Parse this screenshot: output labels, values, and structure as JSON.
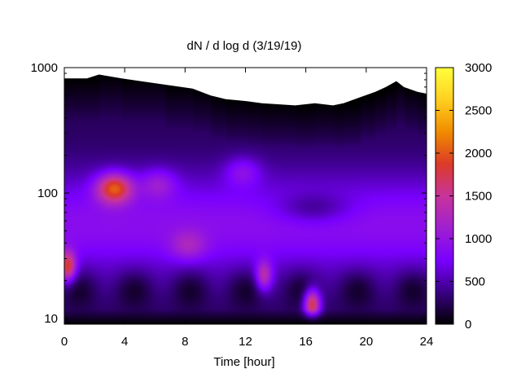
{
  "chart_data": {
    "type": "heatmap",
    "title": "dN / d log d (3/19/19)",
    "xlabel": "Time [hour]",
    "ylabel": "",
    "xlim": [
      0,
      24
    ],
    "ylim": [
      9,
      1000
    ],
    "y_scale": "log",
    "x_ticks": [
      0,
      4,
      8,
      12,
      16,
      20,
      24
    ],
    "x_tick_labels": [
      "0",
      "4",
      "8",
      "12",
      "16",
      "20",
      "24"
    ],
    "y_ticks": [
      10,
      100,
      1000
    ],
    "y_tick_labels": [
      "10",
      "100",
      "1000"
    ],
    "colorbar": {
      "range": [
        0,
        3000
      ],
      "ticks": [
        0,
        500,
        1000,
        1500,
        2000,
        2500,
        3000
      ],
      "tick_labels": [
        "0",
        "500",
        "1000",
        "1500",
        "2000",
        "2500",
        "3000"
      ],
      "colormap": [
        "#000000",
        "#3a0085",
        "#7a00ff",
        "#a020d0",
        "#c8349a",
        "#dc3a28",
        "#f08c00",
        "#ffd020",
        "#ffff3c"
      ]
    },
    "upper_data_limit": {
      "x": [
        0,
        1.5,
        2.3,
        3.8,
        6.7,
        8.5,
        9.7,
        10.7,
        12.1,
        13.1,
        15.3,
        16.6,
        17.8,
        18.5,
        19.6,
        20.6,
        21.3,
        22.0,
        22.5,
        23.4,
        24
      ],
      "d": [
        820,
        820,
        880,
        820,
        730,
        680,
        600,
        560,
        540,
        520,
        500,
        520,
        500,
        520,
        580,
        640,
        700,
        780,
        700,
        640,
        620
      ]
    },
    "features": [
      {
        "t": 3.3,
        "d": 110,
        "level": 2000
      },
      {
        "t": 0.2,
        "d": 26,
        "level": 1900
      },
      {
        "t": 16.4,
        "d": 13,
        "level": 2100
      },
      {
        "t": 13.2,
        "d": 22,
        "level": 1500
      },
      {
        "t": 6.2,
        "d": 120,
        "level": 1100
      },
      {
        "t": 8.2,
        "d": 38,
        "level": 1050
      },
      {
        "t": 11.8,
        "d": 150,
        "level": 1050
      }
    ]
  }
}
